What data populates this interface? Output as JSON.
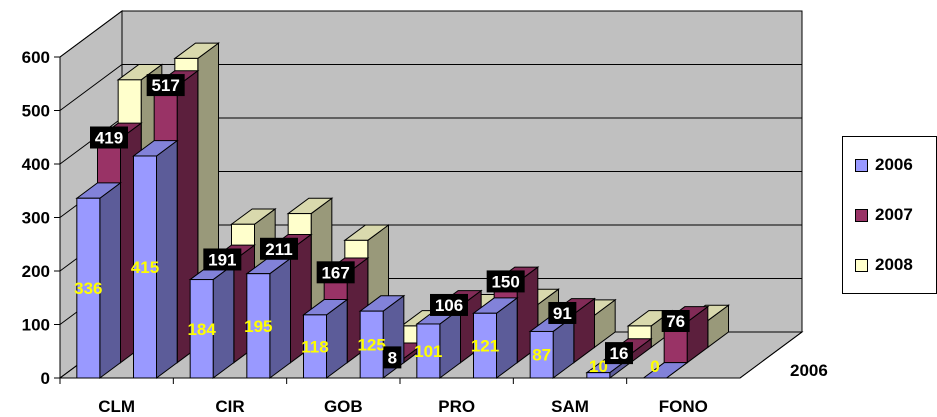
{
  "chart_data": {
    "type": "bar",
    "categories": [
      "CLM",
      "",
      "CIR",
      "",
      "GOB",
      "",
      "PRO",
      "",
      "SAM",
      "",
      "FONO",
      ""
    ],
    "x_tick_labels": [
      "CLM",
      "CIR",
      "GOB",
      "PRO",
      "SAM",
      "FONO"
    ],
    "y_ticks": [
      "0",
      "100",
      "200",
      "300",
      "400",
      "500",
      "600"
    ],
    "ylim": [
      0,
      600
    ],
    "depth_label": "2006",
    "legend_position": "right",
    "series": [
      {
        "name": "2006",
        "color": "#9999FF",
        "values": [
          336,
          415,
          184,
          195,
          118,
          125,
          101,
          121,
          87,
          10,
          0,
          null
        ],
        "label_color": "#FFFF00"
      },
      {
        "name": "2007",
        "color": "#993366",
        "values": [
          419,
          517,
          191,
          211,
          167,
          8,
          106,
          150,
          91,
          16,
          76,
          null
        ],
        "label_color": "#FFFFFF"
      },
      {
        "name": "2008",
        "color": "#FFFFCC",
        "values": [
          500,
          540,
          230,
          250,
          200,
          40,
          70,
          80,
          60,
          40,
          50,
          null
        ]
      }
    ],
    "data_labels": {
      "2006": [
        "336",
        "415",
        "184",
        "195",
        "118",
        "125",
        "101",
        "121",
        "87",
        "10",
        "0"
      ],
      "2007": [
        "419",
        "517",
        "191",
        "211",
        "167",
        "8",
        "106",
        "150",
        "91",
        "16",
        "76"
      ]
    }
  },
  "legend": {
    "items": [
      {
        "label": "2006",
        "color": "#9999FF"
      },
      {
        "label": "2007",
        "color": "#993366"
      },
      {
        "label": "2008",
        "color": "#FFFFCC"
      }
    ]
  },
  "colors": {
    "wall": "#C0C0C0",
    "gridline": "#000000",
    "label_box": "#000000"
  }
}
